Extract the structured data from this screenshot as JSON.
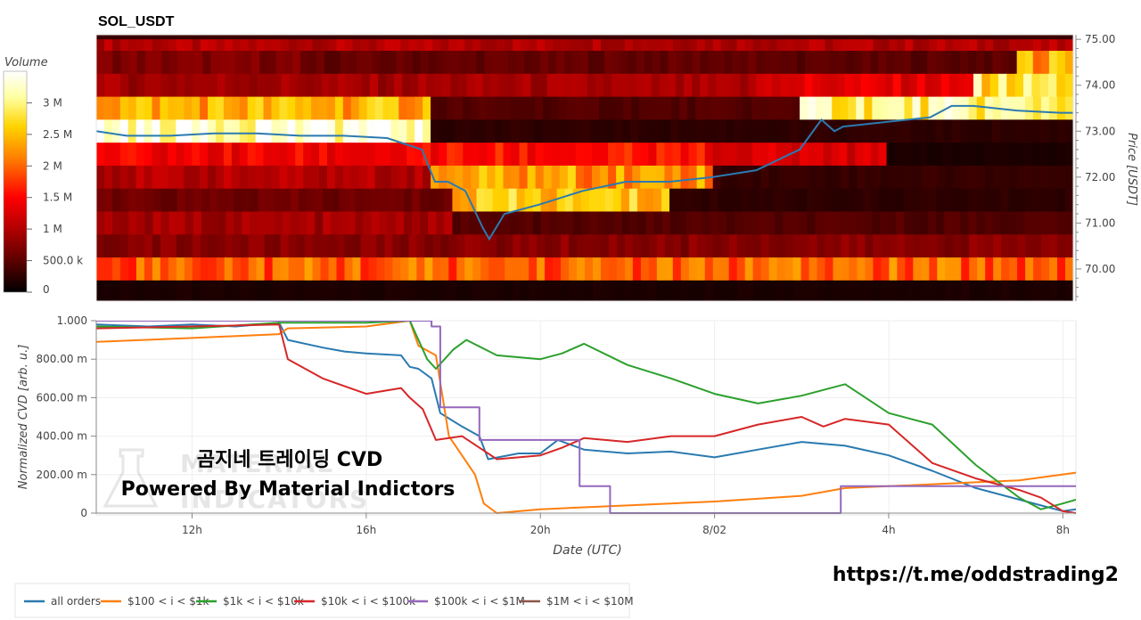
{
  "chart_data": [
    {
      "type": "heatmap",
      "title": "SOL_USDT",
      "ylabel": "Price [USDT]",
      "ylim": [
        69.3,
        75.1
      ],
      "y_ticks": [
        "75.00",
        "74.00",
        "73.00",
        "72.00",
        "71.00",
        "70.00"
      ],
      "y_tick_values": [
        75,
        74,
        73,
        72,
        71,
        70
      ],
      "colorbar": {
        "title": "Volume",
        "ticks": [
          "3 M",
          "2.5 M",
          "2 M",
          "1.5 M",
          "1 M",
          "500.0 k",
          "0"
        ],
        "tick_values": [
          3000000,
          2500000,
          2000000,
          1500000,
          1000000,
          500000,
          0
        ],
        "range": [
          0,
          3500000
        ],
        "colors": [
          "#000000",
          "#5a0000",
          "#b40000",
          "#ff0000",
          "#ff7a00",
          "#ffd400",
          "#ffffa0",
          "#ffffff"
        ]
      },
      "xlim": [
        9.8,
        32.3
      ],
      "price_rows": [
        74.75,
        74.5,
        74.0,
        73.5,
        73.0,
        72.5,
        72.0,
        71.5,
        71.0,
        70.5,
        70.0,
        69.5
      ],
      "volume_bands": [
        {
          "price": 74.75,
          "segments": [
            [
              9.8,
              32.3,
              1000000
            ]
          ]
        },
        {
          "price": 74.5,
          "segments": [
            [
              9.8,
              14.5,
              700000
            ],
            [
              14.5,
              25.0,
              550000
            ],
            [
              25.0,
              31.0,
              500000
            ],
            [
              31.0,
              32.3,
              2300000
            ]
          ]
        },
        {
          "price": 74.0,
          "segments": [
            [
              9.8,
              25.0,
              900000
            ],
            [
              25.0,
              30.0,
              1300000
            ],
            [
              30.0,
              32.3,
              2700000
            ]
          ]
        },
        {
          "price": 73.5,
          "segments": [
            [
              9.8,
              17.5,
              2300000
            ],
            [
              17.5,
              26.0,
              450000
            ],
            [
              26.0,
              32.3,
              2900000
            ]
          ]
        },
        {
          "price": 73.0,
          "segments": [
            [
              9.8,
              17.5,
              3300000
            ],
            [
              17.5,
              28.0,
              250000
            ],
            [
              28.0,
              32.3,
              250000
            ]
          ]
        },
        {
          "price": 72.5,
          "segments": [
            [
              9.8,
              17.5,
              1400000
            ],
            [
              17.5,
              24.0,
              1500000
            ],
            [
              24.0,
              28.0,
              1200000
            ],
            [
              28.0,
              32.3,
              150000
            ]
          ]
        },
        {
          "price": 72.0,
          "segments": [
            [
              9.8,
              17.5,
              1000000
            ],
            [
              17.5,
              24.0,
              2200000
            ],
            [
              24.0,
              32.3,
              300000
            ]
          ]
        },
        {
          "price": 71.5,
          "segments": [
            [
              9.8,
              18.0,
              600000
            ],
            [
              18.0,
              23.0,
              2400000
            ],
            [
              23.0,
              32.3,
              250000
            ]
          ]
        },
        {
          "price": 71.0,
          "segments": [
            [
              9.8,
              18.0,
              900000
            ],
            [
              18.0,
              32.3,
              450000
            ]
          ]
        },
        {
          "price": 70.5,
          "segments": [
            [
              9.8,
              32.3,
              750000
            ]
          ]
        },
        {
          "price": 70.0,
          "segments": [
            [
              9.8,
              32.3,
              1900000
            ]
          ]
        },
        {
          "price": 69.5,
          "segments": [
            [
              9.8,
              32.3,
              150000
            ]
          ]
        }
      ],
      "price_line": {
        "color": "#2a7ab0",
        "x": [
          9.8,
          10.5,
          11.5,
          12.5,
          13.5,
          14.5,
          15.5,
          16.5,
          17.3,
          17.6,
          17.9,
          18.3,
          18.5,
          18.7,
          18.85,
          19.2,
          20.0,
          21.0,
          22.0,
          23.0,
          24.0,
          25.0,
          26.0,
          26.5,
          26.8,
          27.0,
          27.5,
          28.0,
          29.0,
          29.5,
          30.0,
          31.0,
          32.0,
          32.3
        ],
        "y": [
          73.0,
          72.9,
          72.9,
          72.95,
          72.95,
          72.9,
          72.9,
          72.85,
          72.6,
          71.9,
          71.9,
          71.7,
          71.3,
          70.9,
          70.65,
          71.2,
          71.4,
          71.7,
          71.9,
          71.9,
          72.0,
          72.15,
          72.6,
          73.25,
          73.0,
          73.1,
          73.15,
          73.2,
          73.3,
          73.55,
          73.55,
          73.45,
          73.4,
          73.4
        ]
      }
    },
    {
      "type": "line",
      "xlabel": "Date (UTC)",
      "ylabel": "Normalized CVD [arb. u.]",
      "x_ticks": [
        "12h",
        "16h",
        "20h",
        "8/02",
        "4h",
        "8h"
      ],
      "x_tick_values": [
        12,
        16,
        20,
        24,
        28,
        32
      ],
      "xlim": [
        9.8,
        32.3
      ],
      "y_ticks": [
        "1.000",
        "800.00 m",
        "600.00 m",
        "400.00 m",
        "200.00 m",
        "0"
      ],
      "y_tick_values": [
        1,
        0.8,
        0.6,
        0.4,
        0.2,
        0
      ],
      "ylim": [
        0,
        1
      ],
      "legend_position": "bottom",
      "series": [
        {
          "name": "all orders",
          "color": "#2a7ab0",
          "x": [
            9.8,
            11,
            12,
            13,
            14,
            14.2,
            15,
            15.5,
            16,
            16.8,
            17.0,
            17.2,
            17.5,
            17.7,
            18.2,
            18.6,
            18.8,
            19.5,
            20.0,
            20.4,
            21.0,
            22,
            23,
            24,
            25,
            26,
            27,
            28,
            29,
            30,
            31,
            31.5,
            32,
            32.3
          ],
          "y": [
            0.98,
            0.97,
            0.98,
            0.97,
            0.99,
            0.9,
            0.86,
            0.84,
            0.83,
            0.82,
            0.76,
            0.75,
            0.7,
            0.52,
            0.45,
            0.4,
            0.28,
            0.31,
            0.31,
            0.38,
            0.33,
            0.31,
            0.32,
            0.29,
            0.33,
            0.37,
            0.35,
            0.3,
            0.22,
            0.13,
            0.07,
            0.04,
            0.01,
            0.02
          ]
        },
        {
          "name": "$100 < i < $1k",
          "color": "#ff7f0e",
          "x": [
            9.8,
            12,
            14,
            14.2,
            16,
            17.0,
            17.2,
            17.6,
            17.9,
            18.5,
            18.7,
            19.0,
            20,
            22,
            24,
            26,
            27,
            28,
            29,
            30,
            31,
            32.3
          ],
          "y": [
            0.89,
            0.91,
            0.93,
            0.96,
            0.97,
            1.0,
            0.87,
            0.82,
            0.4,
            0.2,
            0.05,
            0.0,
            0.02,
            0.04,
            0.06,
            0.09,
            0.13,
            0.14,
            0.15,
            0.16,
            0.17,
            0.21
          ]
        },
        {
          "name": "$1k < i < $10k",
          "color": "#2ca02c",
          "x": [
            9.8,
            12,
            14,
            15,
            16,
            17.0,
            17.4,
            17.6,
            18.0,
            18.3,
            19.0,
            20.0,
            20.5,
            21.0,
            22.0,
            23.0,
            24.0,
            25.0,
            26.0,
            27.0,
            28.0,
            29.0,
            30.0,
            31.0,
            31.5,
            32.0,
            32.3
          ],
          "y": [
            0.97,
            0.96,
            0.99,
            0.99,
            0.99,
            1.0,
            0.8,
            0.75,
            0.85,
            0.9,
            0.82,
            0.8,
            0.83,
            0.88,
            0.77,
            0.7,
            0.62,
            0.57,
            0.61,
            0.67,
            0.52,
            0.46,
            0.25,
            0.08,
            0.02,
            0.05,
            0.07
          ]
        },
        {
          "name": "$10k < i < $100k",
          "color": "#d62728",
          "x": [
            9.8,
            12,
            14,
            14.2,
            15,
            16,
            16.8,
            17.0,
            17.3,
            17.6,
            18.2,
            18.6,
            19.0,
            20.0,
            20.5,
            21.0,
            22.0,
            23.0,
            24.0,
            25.0,
            26.0,
            26.5,
            27.0,
            28.0,
            29.0,
            30.0,
            31.0,
            31.5,
            32.0,
            32.3
          ],
          "y": [
            0.96,
            0.97,
            0.98,
            0.8,
            0.7,
            0.62,
            0.65,
            0.6,
            0.54,
            0.38,
            0.4,
            0.34,
            0.28,
            0.3,
            0.34,
            0.39,
            0.37,
            0.4,
            0.4,
            0.46,
            0.5,
            0.45,
            0.49,
            0.46,
            0.26,
            0.18,
            0.12,
            0.08,
            0.01,
            0.0
          ]
        },
        {
          "name": "$100k < i < $1M",
          "color": "#9467bd",
          "x": [
            9.8,
            17.5,
            17.5,
            17.7,
            17.7,
            18.6,
            18.6,
            20.9,
            20.9,
            21.6,
            21.6,
            26.9,
            26.9,
            32.3
          ],
          "y": [
            1.0,
            1.0,
            0.97,
            0.97,
            0.55,
            0.55,
            0.38,
            0.38,
            0.14,
            0.14,
            0.0,
            0.0,
            0.14,
            0.14
          ]
        },
        {
          "name": "$1M < i < $10M",
          "color": "#8c564b",
          "x": [],
          "y": []
        }
      ]
    }
  ],
  "watermark": {
    "line1": "곰지네 트레이딩 CVD",
    "line2": "Powered By Material Indictors",
    "logo_top": "MATERIAL",
    "logo_bottom": "INDICATORS"
  },
  "link_text": "https://t.me/oddstrading2"
}
